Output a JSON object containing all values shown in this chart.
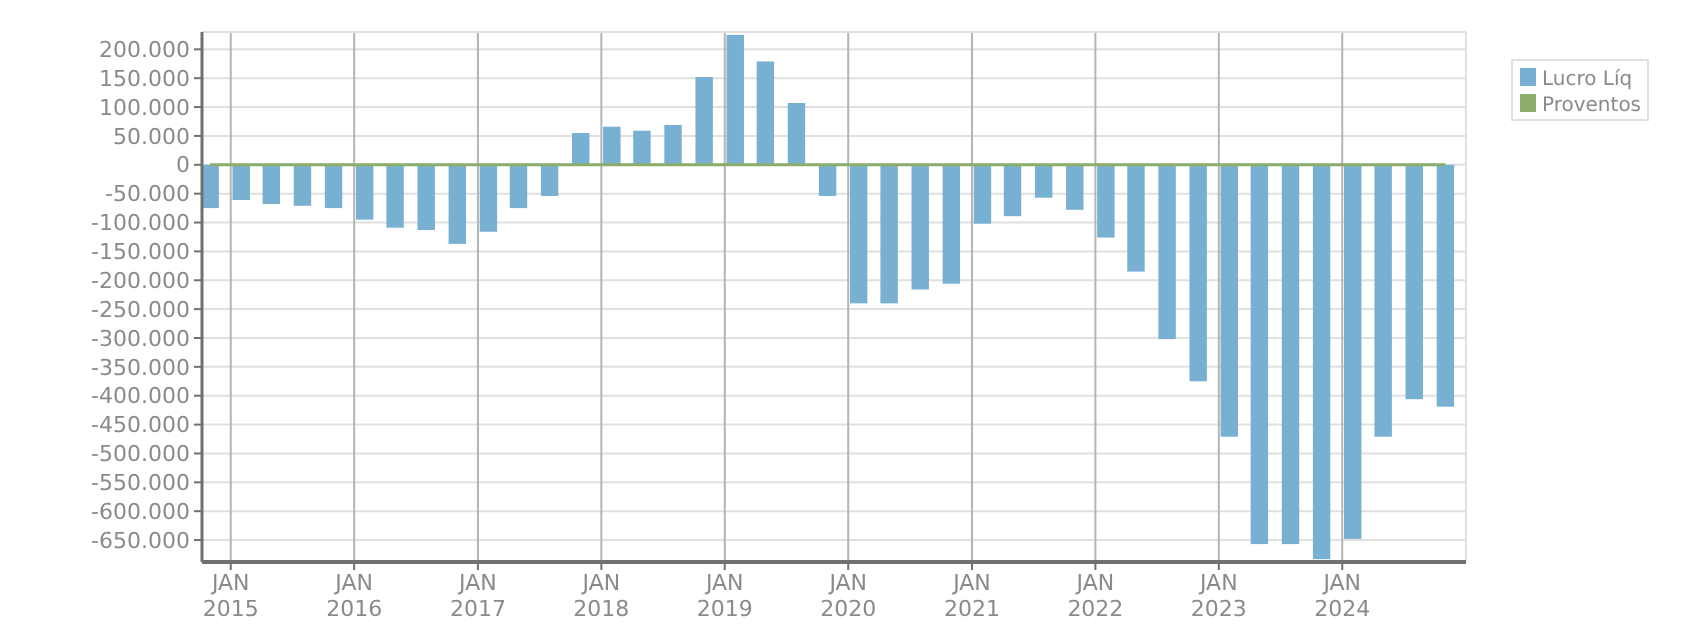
{
  "chart_data": {
    "type": "bar",
    "x": [
      "2014-11-01",
      "2015-02-01",
      "2015-05-01",
      "2015-08-01",
      "2015-11-01",
      "2016-02-01",
      "2016-05-01",
      "2016-08-01",
      "2016-11-01",
      "2017-02-01",
      "2017-05-01",
      "2017-08-01",
      "2017-11-01",
      "2018-02-01",
      "2018-05-01",
      "2018-08-01",
      "2018-11-01",
      "2019-02-01",
      "2019-05-01",
      "2019-08-01",
      "2019-11-01",
      "2020-02-01",
      "2020-05-01",
      "2020-08-01",
      "2020-11-01",
      "2021-02-01",
      "2021-05-01",
      "2021-08-01",
      "2021-11-01",
      "2022-02-01",
      "2022-05-01",
      "2022-08-01",
      "2022-11-01",
      "2023-02-01",
      "2023-05-01",
      "2023-08-01",
      "2023-11-01",
      "2024-02-01",
      "2024-05-01",
      "2024-08-01",
      "2024-11-01"
    ],
    "series": [
      {
        "name": "Lucro Líq",
        "color": "#78b0d2",
        "values": [
          -75000,
          -61000,
          -68000,
          -71000,
          -75000,
          -95000,
          -109000,
          -113000,
          -137000,
          -116000,
          -75000,
          -54000,
          55000,
          66000,
          59000,
          69000,
          152000,
          225000,
          179000,
          107000,
          -54000,
          -240000,
          -240000,
          -216000,
          -206000,
          -102000,
          -89000,
          -57000,
          -78000,
          -126000,
          -185000,
          -302000,
          -375000,
          -471000,
          -657000,
          -657000,
          -683000,
          -648000,
          -471000,
          -406000,
          -419000
        ]
      },
      {
        "name": "Proventos",
        "type": "line",
        "color": "#8aae6a",
        "values": [
          0,
          0,
          0,
          0,
          0,
          0,
          0,
          0,
          0,
          0,
          0,
          0,
          0,
          0,
          0,
          0,
          0,
          0,
          0,
          0,
          0,
          0,
          0,
          0,
          0,
          0,
          0,
          0,
          0,
          0,
          0,
          0,
          0,
          0,
          0,
          0,
          0,
          0,
          0,
          0,
          0
        ]
      }
    ],
    "xlim": [
      "2014-10-08",
      "2025-01-01"
    ],
    "xticks": [
      {
        "value": "2015-01-01",
        "label": "JAN\n2015"
      },
      {
        "value": "2016-01-01",
        "label": "JAN\n2016"
      },
      {
        "value": "2017-01-01",
        "label": "JAN\n2017"
      },
      {
        "value": "2018-01-01",
        "label": "JAN\n2018"
      },
      {
        "value": "2019-01-01",
        "label": "JAN\n2019"
      },
      {
        "value": "2020-01-01",
        "label": "JAN\n2020"
      },
      {
        "value": "2021-01-01",
        "label": "JAN\n2021"
      },
      {
        "value": "2022-01-01",
        "label": "JAN\n2022"
      },
      {
        "value": "2023-01-01",
        "label": "JAN\n2023"
      },
      {
        "value": "2024-01-01",
        "label": "JAN\n2024"
      }
    ],
    "ylim": [
      -688000,
      230000
    ],
    "yticks": [
      {
        "value": 200000,
        "label": "200.000"
      },
      {
        "value": 150000,
        "label": "150.000"
      },
      {
        "value": 100000,
        "label": "100.000"
      },
      {
        "value": 50000,
        "label": "50.000"
      },
      0,
      {
        "value": -50000,
        "label": "-50.000"
      },
      {
        "value": -100000,
        "label": "-100.000"
      },
      {
        "value": -150000,
        "label": "-150.000"
      },
      {
        "value": -200000,
        "label": "-200.000"
      },
      {
        "value": -250000,
        "label": "-250.000"
      },
      {
        "value": -300000,
        "label": "-300.000"
      },
      {
        "value": -350000,
        "label": "-350.000"
      },
      {
        "value": -400000,
        "label": "-400.000"
      },
      {
        "value": -450000,
        "label": "-450.000"
      },
      {
        "value": -500000,
        "label": "-500.000"
      },
      {
        "value": -550000,
        "label": "-550.000"
      },
      {
        "value": -600000,
        "label": "-600.000"
      },
      {
        "value": -650000,
        "label": "-650.000"
      }
    ],
    "grid": true,
    "legend": "top right"
  }
}
